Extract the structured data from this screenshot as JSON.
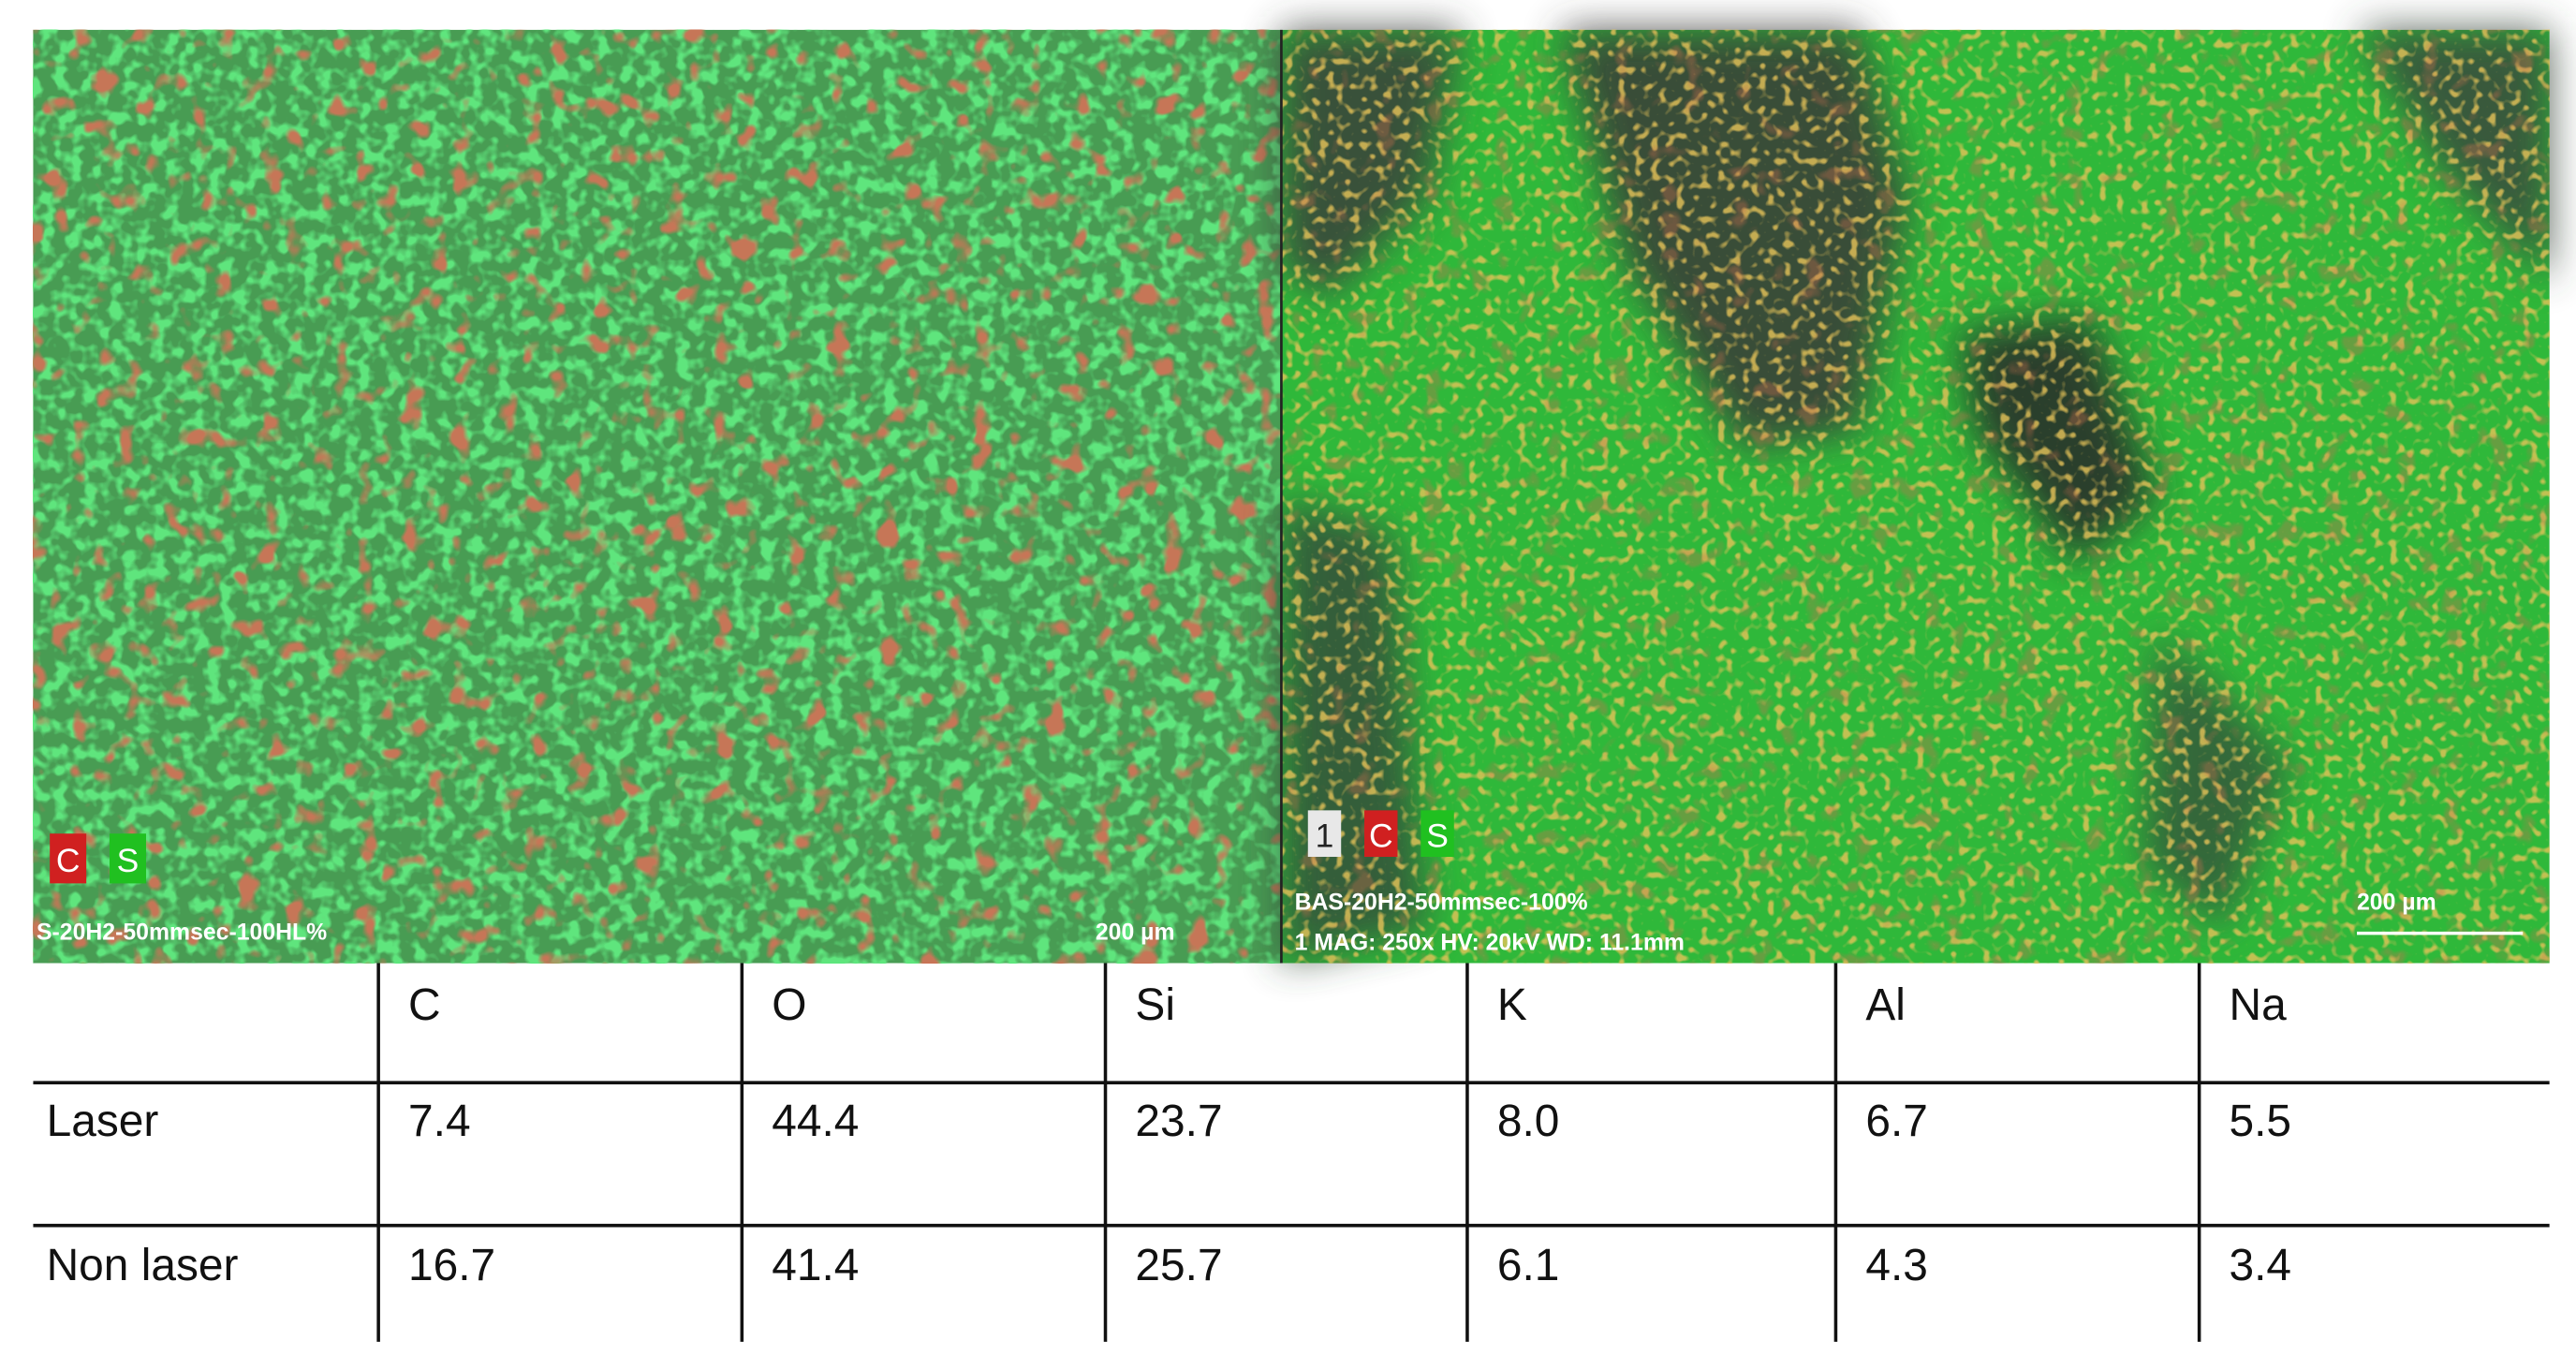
{
  "images": [
    {
      "labels": [
        "C",
        "S"
      ],
      "caption": "S-20H2-50mmsec-100HL%",
      "scale": "200 µm"
    },
    {
      "labels": [
        "1",
        "C",
        "S"
      ],
      "caption": "BAS-20H2-50mmsec-100%",
      "info": "1 MAG: 250x HV: 20kV WD: 11.1mm",
      "scale": "200 µm"
    }
  ],
  "table": {
    "header": [
      "C",
      "O",
      "Si",
      "K",
      "Al",
      "Na"
    ],
    "rows": [
      [
        "Laser",
        "7.4",
        "44.4",
        "23.7",
        "8.0",
        "6.7",
        "5.5"
      ],
      [
        "Non laser",
        "16.7",
        "41.4",
        "25.7",
        "6.1",
        "4.3",
        "3.4"
      ]
    ]
  }
}
